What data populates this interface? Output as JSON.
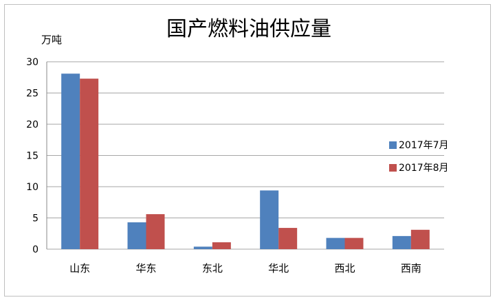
{
  "chart_data": {
    "type": "bar",
    "title": "国产燃料油供应量",
    "unit_label": "万吨",
    "categories": [
      "山东",
      "华东",
      "东北",
      "华北",
      "西北",
      "西南"
    ],
    "series": [
      {
        "name": "2017年7月",
        "color": "#4F81BD",
        "values": [
          28.1,
          4.3,
          0.4,
          9.4,
          1.8,
          2.1
        ]
      },
      {
        "name": "2017年8月",
        "color": "#C0504D",
        "values": [
          27.3,
          5.6,
          1.1,
          3.4,
          1.8,
          3.1
        ]
      }
    ],
    "ylim": [
      0,
      30
    ],
    "yticks": [
      "0",
      "5",
      "10",
      "15",
      "20",
      "25",
      "30"
    ],
    "grid": true,
    "legend_position": "right"
  }
}
